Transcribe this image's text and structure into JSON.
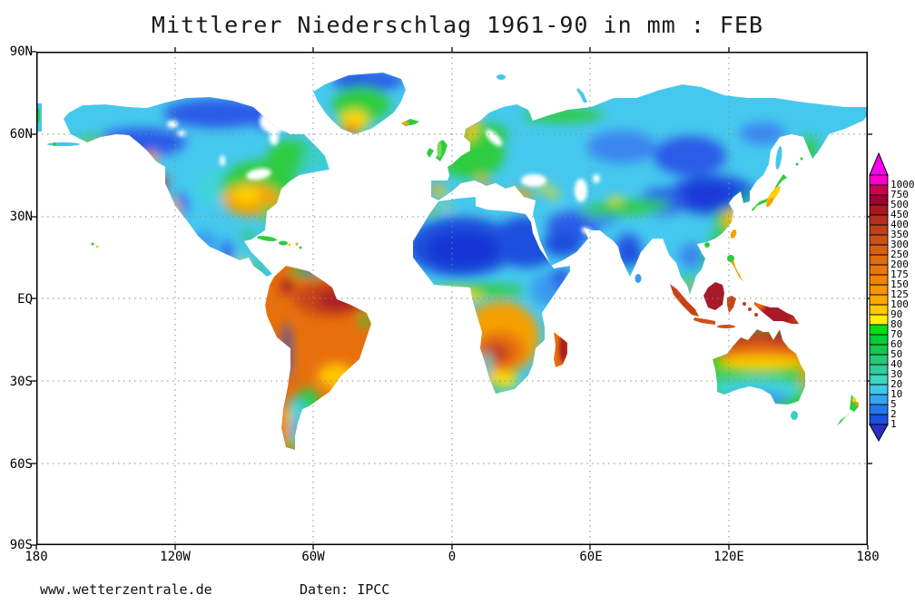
{
  "title": "Mittlerer Niederschlag 1961-90 in mm : FEB",
  "footer": {
    "website": "www.wetterzentrale.de",
    "source": "Daten: IPCC"
  },
  "axes": {
    "lat_ticks": [
      "90N",
      "60N",
      "30N",
      "EQ",
      "30S",
      "60S",
      "90S"
    ],
    "lon_ticks": [
      "180",
      "120W",
      "60W",
      "0",
      "60E",
      "120E",
      "180"
    ]
  },
  "colorbar": {
    "levels": [
      1000,
      750,
      500,
      450,
      400,
      350,
      300,
      250,
      200,
      175,
      150,
      125,
      100,
      90,
      80,
      70,
      60,
      50,
      40,
      30,
      20,
      10,
      5,
      2,
      1
    ],
    "cell_colors": [
      "#FA00C8",
      "#CC0050",
      "#A00030",
      "#AA1820",
      "#B43020",
      "#C0401C",
      "#CC5016",
      "#D86010",
      "#E06C0C",
      "#E87808",
      "#F08404",
      "#F89400",
      "#FFA800",
      "#FFC800",
      "#FFF000",
      "#00E014",
      "#00D032",
      "#14C850",
      "#28C878",
      "#30CC9C",
      "#3CD8C0",
      "#40C8E8",
      "#34A4F0",
      "#2478EC",
      "#1850E0"
    ],
    "above_max_color": "#F800F0",
    "below_min_color": "#2830C8"
  }
}
